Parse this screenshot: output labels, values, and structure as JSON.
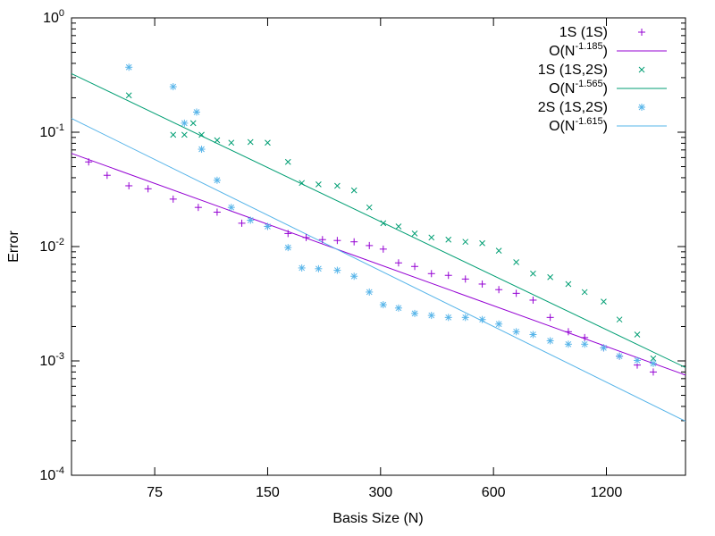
{
  "chart_data": {
    "type": "scatter",
    "title": "",
    "xlabel": "Basis Size (N)",
    "ylabel": "Error",
    "xscale": "log",
    "yscale": "log",
    "xlim": [
      45,
      1950
    ],
    "ylim": [
      0.0001,
      1
    ],
    "xticks": [
      75,
      150,
      300,
      600,
      1200
    ],
    "xtick_labels": [
      "75",
      "150",
      "300",
      "600",
      "1200"
    ],
    "yticks": [
      {
        "value": 1,
        "base": "10",
        "exp": "0"
      },
      {
        "value": 0.1,
        "base": "10",
        "exp": "-1"
      },
      {
        "value": 0.01,
        "base": "10",
        "exp": "-2"
      },
      {
        "value": 0.001,
        "base": "10",
        "exp": "-3"
      },
      {
        "value": 0.0001,
        "base": "10",
        "exp": "-4"
      }
    ],
    "grid": false,
    "legend_position": "top-right",
    "series": [
      {
        "name": "1S (1S)",
        "kind": "points",
        "marker": "plus",
        "color": "#9400d3",
        "x": [
          50,
          56,
          64,
          72,
          84,
          98,
          110,
          128,
          150,
          170,
          190,
          210,
          230,
          255,
          280,
          305,
          335,
          370,
          410,
          455,
          505,
          560,
          620,
          690,
          765,
          850,
          950,
          1050,
          1180,
          1300,
          1450,
          1600
        ],
        "y": [
          0.055,
          0.042,
          0.034,
          0.032,
          0.026,
          0.022,
          0.02,
          0.016,
          0.015,
          0.013,
          0.012,
          0.0115,
          0.0113,
          0.011,
          0.0102,
          0.0095,
          0.0072,
          0.0067,
          0.0058,
          0.0056,
          0.0052,
          0.0047,
          0.0042,
          0.0039,
          0.0034,
          0.0024,
          0.0018,
          0.0016,
          0.0013,
          0.0011,
          0.00092,
          0.0008
        ]
      },
      {
        "name": "O(N",
        "exponent": "-1.185",
        "name_suffix": ")",
        "kind": "line",
        "color": "#9400d3",
        "x": [
          45,
          1950
        ],
        "y": [
          0.0653,
          0.000752
        ]
      },
      {
        "name": "1S (1S,2S)",
        "kind": "points",
        "marker": "x",
        "color": "#009e73",
        "x": [
          64,
          84,
          90,
          95,
          100,
          110,
          120,
          135,
          150,
          170,
          185,
          205,
          230,
          255,
          280,
          305,
          335,
          370,
          410,
          455,
          505,
          560,
          620,
          690,
          765,
          850,
          950,
          1050,
          1180,
          1300,
          1450,
          1600
        ],
        "y": [
          0.21,
          0.095,
          0.095,
          0.12,
          0.095,
          0.085,
          0.081,
          0.082,
          0.081,
          0.055,
          0.036,
          0.035,
          0.034,
          0.031,
          0.022,
          0.016,
          0.015,
          0.013,
          0.012,
          0.0115,
          0.011,
          0.0107,
          0.0092,
          0.0073,
          0.0058,
          0.0054,
          0.0047,
          0.004,
          0.0033,
          0.0023,
          0.0017,
          0.00105
        ]
      },
      {
        "name": "O(N",
        "exponent": "-1.565",
        "name_suffix": ")",
        "kind": "line",
        "color": "#009e73",
        "x": [
          45,
          1950
        ],
        "y": [
          0.325,
          0.000875
        ]
      },
      {
        "name": "2S (1S,2S)",
        "kind": "points",
        "marker": "star",
        "color": "#56b4e9",
        "x": [
          64,
          84,
          90,
          97,
          100,
          110,
          120,
          135,
          150,
          170,
          185,
          205,
          230,
          255,
          280,
          305,
          335,
          370,
          410,
          455,
          505,
          560,
          620,
          690,
          765,
          850,
          950,
          1050,
          1180,
          1300,
          1450,
          1600
        ],
        "y": [
          0.37,
          0.25,
          0.12,
          0.15,
          0.071,
          0.038,
          0.022,
          0.017,
          0.015,
          0.0098,
          0.0065,
          0.0064,
          0.0062,
          0.0055,
          0.004,
          0.0031,
          0.0029,
          0.0026,
          0.0025,
          0.0024,
          0.0024,
          0.0023,
          0.0021,
          0.0018,
          0.0017,
          0.0015,
          0.0014,
          0.0014,
          0.0013,
          0.0011,
          0.00101,
          0.00095
        ]
      },
      {
        "name": "O(N",
        "exponent": "-1.615",
        "name_suffix": ")",
        "kind": "line",
        "color": "#56b4e9",
        "x": [
          45,
          1950
        ],
        "y": [
          0.132,
          0.000297
        ]
      }
    ]
  }
}
